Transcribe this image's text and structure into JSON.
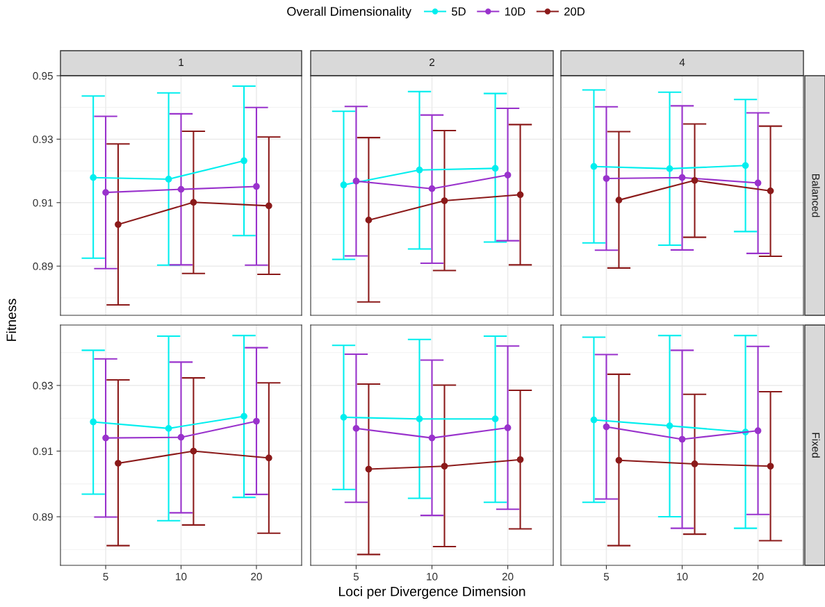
{
  "chart_data": [
    {
      "type": "line",
      "title": "1",
      "ylabel": "Fitness",
      "legend_title": "Overall Dimensionality",
      "legend": "top",
      "tick_labels": "y",
      "categories": [
        "5",
        "10",
        "20"
      ],
      "ylim": [
        0.8745,
        0.95
      ],
      "yticks": [
        0.89,
        0.91,
        0.93,
        0.95
      ],
      "grid": true,
      "marker": "circle",
      "line_style": "solid",
      "series": [
        {
          "name": "5D",
          "color": "#00eeee",
          "values": [
            0.9179,
            0.9174,
            0.9232
          ],
          "errors": [
            [
              0.8925,
              0.9436
            ],
            [
              0.8903,
              0.9446
            ],
            [
              0.8996,
              0.9467
            ]
          ]
        },
        {
          "name": "10D",
          "color": "#9932cc",
          "values": [
            0.9132,
            0.9142,
            0.9151
          ],
          "errors": [
            [
              0.8892,
              0.9372
            ],
            [
              0.8904,
              0.938
            ],
            [
              0.8903,
              0.94
            ]
          ]
        },
        {
          "name": "20D",
          "color": "#8b1a1a",
          "values": [
            0.9031,
            0.9101,
            0.909
          ],
          "errors": [
            [
              0.8778,
              0.9285
            ],
            [
              0.8877,
              0.9325
            ],
            [
              0.8874,
              0.9307
            ]
          ]
        }
      ]
    },
    {
      "type": "line",
      "title": "2",
      "tick_labels": false,
      "categories": [
        "5",
        "10",
        "20"
      ],
      "ylim": [
        0.8745,
        0.95
      ],
      "yticks": [
        0.89,
        0.91,
        0.93,
        0.95
      ],
      "grid": true,
      "marker": "circle",
      "line_style": "solid",
      "series": [
        {
          "color": "#00eeee",
          "values": [
            0.9156,
            0.9203,
            0.9208
          ],
          "errors": [
            [
              0.8921,
              0.9388
            ],
            [
              0.8954,
              0.945
            ],
            [
              0.8976,
              0.9444
            ]
          ]
        },
        {
          "color": "#9932cc",
          "values": [
            0.9168,
            0.9144,
            0.9187
          ],
          "errors": [
            [
              0.8932,
              0.9403
            ],
            [
              0.8909,
              0.9376
            ],
            [
              0.898,
              0.9397
            ]
          ]
        },
        {
          "color": "#8b1a1a",
          "values": [
            0.9045,
            0.9106,
            0.9125
          ],
          "errors": [
            [
              0.8787,
              0.9305
            ],
            [
              0.8886,
              0.9327
            ],
            [
              0.8904,
              0.9346
            ]
          ]
        }
      ]
    },
    {
      "type": "line",
      "title": "4",
      "annotations": [
        "Balanced"
      ],
      "tick_labels": false,
      "categories": [
        "5",
        "10",
        "20"
      ],
      "ylim": [
        0.8745,
        0.95
      ],
      "yticks": [
        0.89,
        0.91,
        0.93,
        0.95
      ],
      "grid": true,
      "marker": "circle",
      "line_style": "solid",
      "series": [
        {
          "color": "#00eeee",
          "values": [
            0.9214,
            0.9207,
            0.9217
          ],
          "errors": [
            [
              0.8973,
              0.9455
            ],
            [
              0.8966,
              0.9448
            ],
            [
              0.9009,
              0.9425
            ]
          ]
        },
        {
          "color": "#9932cc",
          "values": [
            0.9176,
            0.9179,
            0.9162
          ],
          "errors": [
            [
              0.895,
              0.9402
            ],
            [
              0.8951,
              0.9405
            ],
            [
              0.894,
              0.9383
            ]
          ]
        },
        {
          "color": "#8b1a1a",
          "values": [
            0.9108,
            0.917,
            0.9137
          ],
          "errors": [
            [
              0.8894,
              0.9324
            ],
            [
              0.8991,
              0.9348
            ],
            [
              0.8931,
              0.9341
            ]
          ]
        }
      ]
    },
    {
      "type": "line",
      "categories": [
        "5",
        "10",
        "20"
      ],
      "ylim": [
        0.8752,
        0.9484
      ],
      "yticks": [
        0.89,
        0.91,
        0.93
      ],
      "grid": true,
      "marker": "circle",
      "line_style": "solid",
      "series": [
        {
          "color": "#00eeee",
          "values": [
            0.9189,
            0.9169,
            0.9206
          ],
          "errors": [
            [
              0.8969,
              0.9407
            ],
            [
              0.8888,
              0.945
            ],
            [
              0.8959,
              0.9452
            ]
          ]
        },
        {
          "color": "#9932cc",
          "values": [
            0.914,
            0.9142,
            0.9191
          ],
          "errors": [
            [
              0.8899,
              0.9381
            ],
            [
              0.8912,
              0.9371
            ],
            [
              0.8968,
              0.9415
            ]
          ]
        },
        {
          "color": "#8b1a1a",
          "values": [
            0.9063,
            0.91,
            0.9079
          ],
          "errors": [
            [
              0.8812,
              0.9317
            ],
            [
              0.8875,
              0.9323
            ],
            [
              0.885,
              0.9308
            ]
          ]
        }
      ]
    },
    {
      "type": "line",
      "xlabel": "Loci per Divergence Dimension",
      "tick_labels": "x",
      "categories": [
        "5",
        "10",
        "20"
      ],
      "ylim": [
        0.8752,
        0.9484
      ],
      "yticks": [
        0.89,
        0.91,
        0.93
      ],
      "grid": true,
      "marker": "circle",
      "line_style": "solid",
      "series": [
        {
          "color": "#00eeee",
          "values": [
            0.9203,
            0.9198,
            0.9198
          ],
          "errors": [
            [
              0.8983,
              0.9422
            ],
            [
              0.8956,
              0.944
            ],
            [
              0.8944,
              0.945
            ]
          ]
        },
        {
          "color": "#9932cc",
          "values": [
            0.9169,
            0.914,
            0.9171
          ],
          "errors": [
            [
              0.8944,
              0.9395
            ],
            [
              0.8904,
              0.9377
            ],
            [
              0.8923,
              0.942
            ]
          ]
        },
        {
          "color": "#8b1a1a",
          "values": [
            0.9045,
            0.9054,
            0.9074
          ],
          "errors": [
            [
              0.8785,
              0.9304
            ],
            [
              0.8809,
              0.9301
            ],
            [
              0.8863,
              0.9285
            ]
          ]
        }
      ]
    },
    {
      "type": "line",
      "annotations": [
        "Fixed"
      ],
      "tick_labels": "x",
      "categories": [
        "5",
        "10",
        "20"
      ],
      "ylim": [
        0.8752,
        0.9484
      ],
      "yticks": [
        0.89,
        0.91,
        0.93
      ],
      "grid": true,
      "marker": "circle",
      "line_style": "solid",
      "series": [
        {
          "color": "#00eeee",
          "values": [
            0.9195,
            0.9177,
            0.9158
          ],
          "errors": [
            [
              0.8944,
              0.9447
            ],
            [
              0.89,
              0.9452
            ],
            [
              0.8865,
              0.9452
            ]
          ]
        },
        {
          "color": "#9932cc",
          "values": [
            0.9174,
            0.9136,
            0.9162
          ],
          "errors": [
            [
              0.8954,
              0.9394
            ],
            [
              0.8865,
              0.9407
            ],
            [
              0.8907,
              0.9419
            ]
          ]
        },
        {
          "color": "#8b1a1a",
          "values": [
            0.9072,
            0.9061,
            0.9054
          ],
          "errors": [
            [
              0.8812,
              0.9334
            ],
            [
              0.8847,
              0.9273
            ],
            [
              0.8827,
              0.9281
            ]
          ]
        }
      ]
    }
  ]
}
